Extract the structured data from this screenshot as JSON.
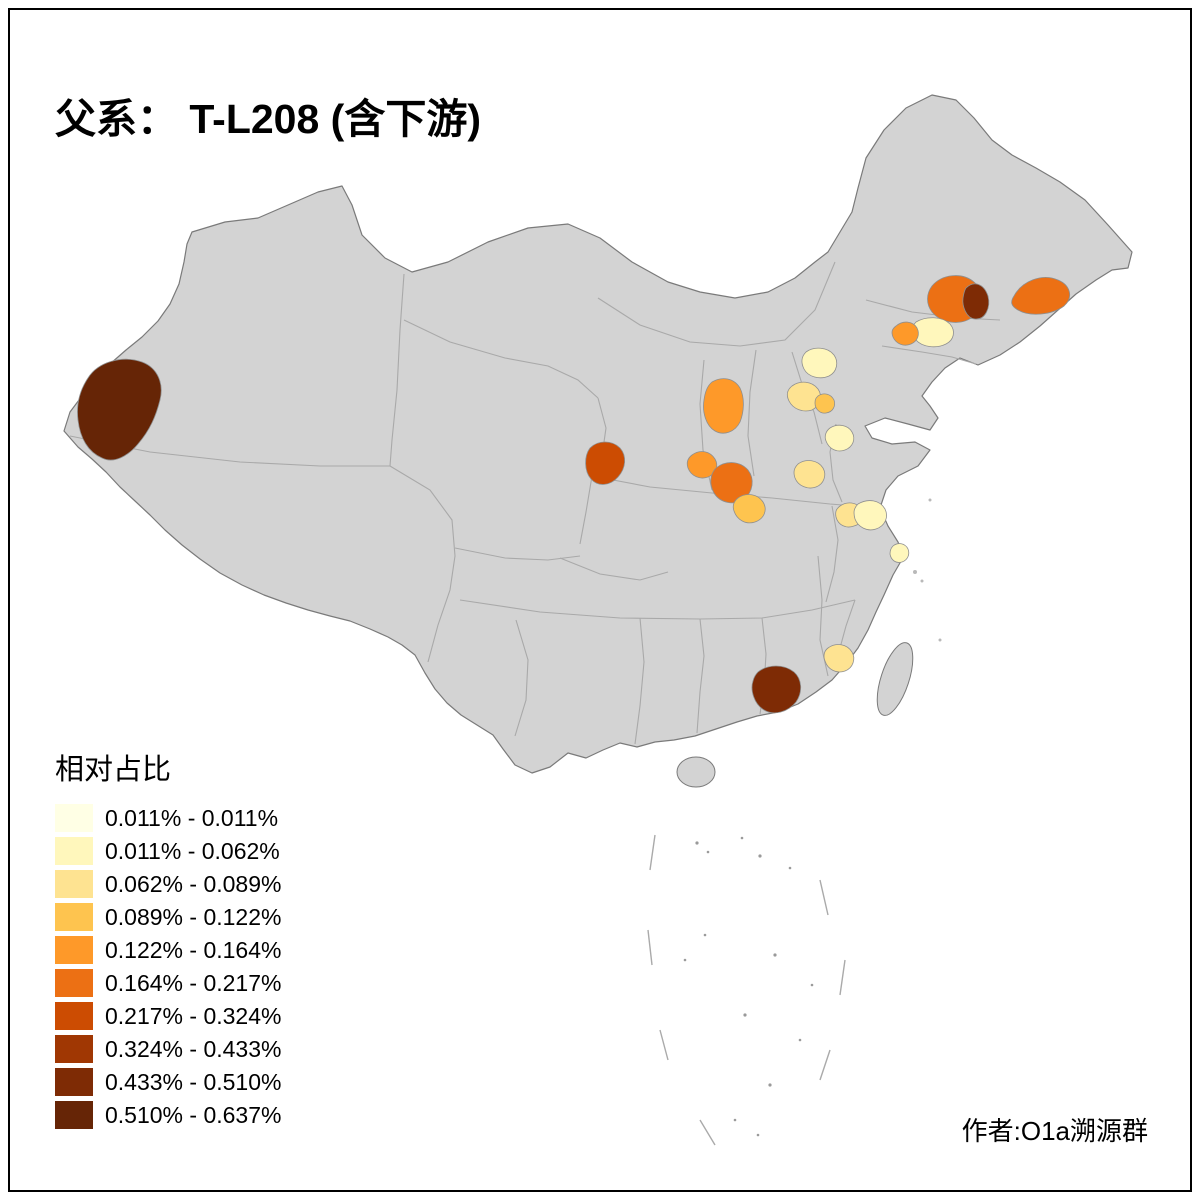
{
  "title": "父系： T-L208 (含下游)",
  "legend": {
    "title": "相对占比",
    "items": [
      {
        "label": "0.011% - 0.011%",
        "color": "#FFFFE5"
      },
      {
        "label": "0.011% - 0.062%",
        "color": "#FFF7BC"
      },
      {
        "label": "0.062% - 0.089%",
        "color": "#FEE391"
      },
      {
        "label": "0.089% - 0.122%",
        "color": "#FEC44F"
      },
      {
        "label": "0.122% - 0.164%",
        "color": "#FE9929"
      },
      {
        "label": "0.164% - 0.217%",
        "color": "#EC7014"
      },
      {
        "label": "0.217% - 0.324%",
        "color": "#CC4C02"
      },
      {
        "label": "0.324% - 0.433%",
        "color": "#A03703"
      },
      {
        "label": "0.433% - 0.510%",
        "color": "#7E2B05"
      },
      {
        "label": "0.510% - 0.637%",
        "color": "#662506"
      }
    ]
  },
  "attribution": "作者:O1a溯源群",
  "map": {
    "base_fill": "#d3d3d3",
    "outline_color": "#7a7a7a",
    "province_border_color": "#a9a9a9",
    "region_border_color": "#8f8f8f",
    "regions": [
      {
        "id": "region-west-xinjiang",
        "class": 9
      },
      {
        "id": "region-northeast-jilin",
        "class": 5
      },
      {
        "id": "region-northeast-jilin-dark",
        "class": 8
      },
      {
        "id": "region-northeast-heilongjiang",
        "class": 5
      },
      {
        "id": "region-liaoning-pale",
        "class": 1
      },
      {
        "id": "region-liaoning-orange",
        "class": 4
      },
      {
        "id": "region-beijing-north",
        "class": 1
      },
      {
        "id": "region-beijing-south",
        "class": 2
      },
      {
        "id": "region-tianjin-small",
        "class": 3
      },
      {
        "id": "region-shanxi",
        "class": 4
      },
      {
        "id": "region-gansu",
        "class": 6
      },
      {
        "id": "region-shaanxi-north",
        "class": 4
      },
      {
        "id": "region-shaanxi-core",
        "class": 5
      },
      {
        "id": "region-shaanxi-south",
        "class": 3
      },
      {
        "id": "region-henan",
        "class": 2
      },
      {
        "id": "region-shandong",
        "class": 1
      },
      {
        "id": "region-anhui",
        "class": 2
      },
      {
        "id": "region-jiangsu",
        "class": 1
      },
      {
        "id": "region-shanghai",
        "class": 1
      },
      {
        "id": "region-fujian",
        "class": 2
      },
      {
        "id": "region-guangdong-dark",
        "class": 8
      }
    ]
  }
}
